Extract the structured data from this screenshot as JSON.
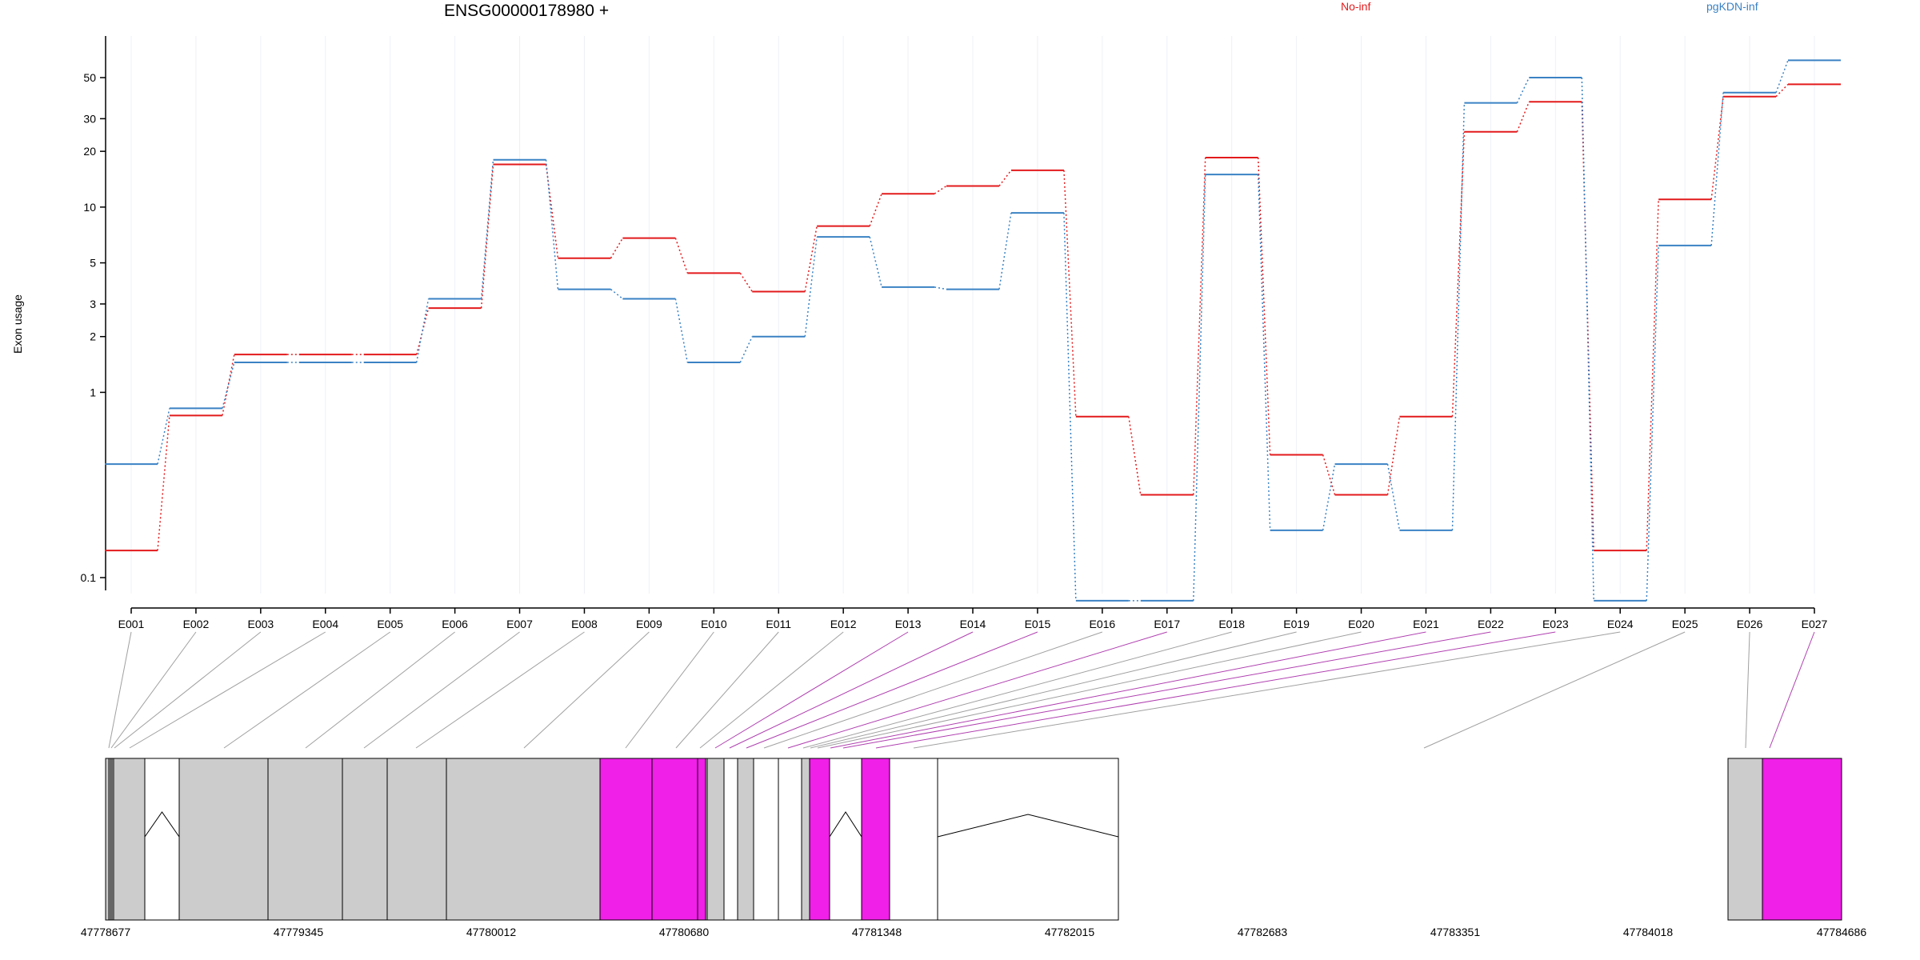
{
  "chart_data": {
    "type": "line",
    "title": "ENSG00000178980 +",
    "ylabel": "Exon usage",
    "xlabel": "",
    "yscale": "log",
    "ylim": [
      0.075,
      80
    ],
    "yticks": [
      0.1,
      1,
      2,
      3,
      5,
      10,
      20,
      30,
      50
    ],
    "ytick_labels": [
      "0.1",
      "1",
      "2",
      "3",
      "5",
      "10",
      "20",
      "30",
      "50"
    ],
    "grid": "vertical",
    "legend": "top",
    "categories": [
      "E001",
      "E002",
      "E003",
      "E004",
      "E005",
      "E006",
      "E007",
      "E008",
      "E009",
      "E010",
      "E011",
      "E012",
      "E013",
      "E014",
      "E015",
      "E016",
      "E017",
      "E018",
      "E019",
      "E020",
      "E021",
      "E022",
      "E023",
      "E024",
      "E025",
      "E026",
      "E027"
    ],
    "series": [
      {
        "name": "No-inf",
        "color": "#e31a1c",
        "values": [
          0.14,
          0.75,
          1.6,
          1.6,
          1.6,
          2.85,
          17,
          5.3,
          6.8,
          4.4,
          3.5,
          7.9,
          11.8,
          13,
          15.8,
          0.74,
          0.28,
          18.5,
          0.46,
          0.28,
          0.74,
          25.5,
          37,
          0.14,
          11,
          39.5,
          46
        ]
      },
      {
        "name": "pgKDN-inf",
        "color": "#3a82c4",
        "values": [
          0.41,
          0.82,
          1.45,
          1.45,
          1.45,
          3.2,
          18,
          3.6,
          3.2,
          1.45,
          2,
          6.9,
          3.7,
          3.6,
          9.3,
          0.075,
          0.075,
          15,
          0.18,
          0.41,
          0.18,
          36.5,
          50,
          0.075,
          6.2,
          41.5,
          62
        ]
      }
    ],
    "genomic_axis": {
      "ticks": [
        "47778677",
        "47779345",
        "47780012",
        "47780680",
        "47781348",
        "47782015",
        "47782683",
        "47783351",
        "47784018",
        "47784686"
      ]
    },
    "colors": {
      "exon_default": "#cccccc",
      "exon_highlight": "#f020e8",
      "link_default": "#a0a0a0",
      "link_highlight": "#b040b0"
    }
  }
}
